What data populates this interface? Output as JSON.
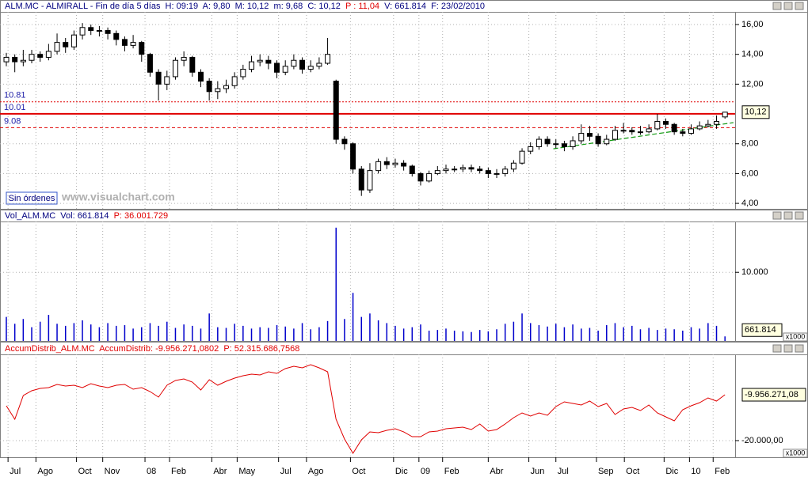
{
  "ui": {
    "button": "Sin órdenes",
    "watermark": "www.visualchart.com"
  },
  "chart_data": [
    {
      "type": "candlestick",
      "title_parts": [
        {
          "text": "ALM.MC - ALMIRALL - Fin de día 5 días  H: 09:19  A: 9,80  M: 10,12  m: 9,68  C: 10,12  ",
          "color": "#000080"
        },
        {
          "text": "P : 11,04",
          "color": "#e00000"
        },
        {
          "text": "  V: 661.814  F: 23/02/2010",
          "color": "#000080"
        }
      ],
      "open": [
        13.5,
        13.8,
        13.5,
        13.6,
        14.0,
        13.8,
        14.2,
        14.8,
        14.5,
        15.3,
        15.8,
        15.6,
        15.6,
        15.4,
        15.0,
        14.6,
        14.8,
        14.0,
        12.8,
        12.0,
        12.5,
        13.6,
        13.8,
        12.8,
        12.2,
        11.5,
        11.7,
        11.9,
        12.5,
        13.0,
        13.5,
        13.6,
        13.4,
        12.8,
        13.2,
        13.6,
        13.0,
        13.2,
        13.4,
        12.2,
        8.3,
        8.0,
        6.3,
        4.9,
        6.2,
        6.8,
        6.6,
        6.7,
        6.5,
        6.0,
        5.5,
        6.0,
        6.2,
        6.3,
        6.3,
        6.4,
        6.3,
        6.2,
        6.0,
        6.0,
        6.3,
        6.7,
        7.5,
        7.8,
        8.3,
        8.0,
        8.0,
        7.8,
        8.2,
        8.7,
        8.5,
        8.0,
        8.3,
        8.9,
        8.9,
        8.8,
        8.8,
        9.0,
        9.5,
        9.3,
        8.8,
        8.7,
        9.0,
        9.2,
        9.3,
        9.8
      ],
      "high": [
        14.1,
        14.0,
        14.3,
        14.3,
        14.2,
        14.7,
        15.4,
        15.1,
        15.6,
        16.1,
        16.0,
        15.9,
        15.8,
        15.6,
        15.2,
        15.3,
        14.9,
        14.1,
        13.0,
        12.9,
        13.8,
        14.2,
        13.9,
        13.0,
        12.4,
        12.2,
        12.3,
        12.8,
        13.3,
        13.9,
        14.0,
        13.9,
        13.6,
        13.6,
        14.0,
        13.8,
        13.6,
        13.8,
        15.1,
        12.3,
        8.5,
        8.1,
        6.5,
        6.7,
        7.0,
        7.1,
        7.0,
        6.9,
        6.6,
        6.1,
        6.2,
        6.5,
        6.6,
        6.5,
        6.6,
        6.6,
        6.5,
        6.4,
        6.3,
        6.5,
        6.9,
        7.7,
        8.1,
        8.5,
        8.5,
        8.3,
        8.2,
        8.5,
        9.3,
        9.2,
        8.7,
        8.6,
        9.2,
        9.4,
        9.1,
        9.2,
        9.3,
        10.0,
        9.7,
        9.4,
        9.0,
        9.3,
        9.5,
        9.6,
        9.9,
        10.12
      ],
      "low": [
        13.2,
        12.8,
        13.2,
        13.4,
        13.5,
        13.6,
        14.0,
        14.1,
        14.3,
        15.0,
        15.3,
        15.2,
        15.0,
        14.6,
        14.2,
        14.4,
        13.5,
        12.5,
        10.9,
        11.6,
        12.3,
        13.2,
        12.5,
        11.8,
        10.9,
        11.0,
        11.4,
        11.7,
        12.3,
        12.8,
        13.2,
        13.0,
        12.4,
        12.6,
        13.0,
        12.7,
        12.8,
        13.0,
        13.3,
        8.0,
        7.6,
        6.0,
        4.5,
        4.7,
        6.0,
        6.3,
        6.4,
        6.2,
        5.8,
        5.2,
        5.4,
        5.9,
        6.0,
        6.1,
        6.1,
        6.1,
        6.0,
        5.7,
        5.7,
        5.8,
        6.1,
        6.6,
        7.3,
        7.6,
        7.8,
        7.7,
        7.5,
        7.6,
        8.0,
        8.2,
        7.8,
        7.9,
        8.2,
        8.7,
        8.6,
        8.6,
        8.7,
        8.9,
        9.0,
        8.6,
        8.5,
        8.6,
        8.9,
        9.1,
        9.0,
        9.68
      ],
      "close": [
        13.8,
        13.5,
        13.6,
        14.0,
        13.8,
        14.2,
        14.8,
        14.5,
        15.3,
        15.8,
        15.6,
        15.6,
        15.4,
        15.0,
        14.6,
        14.8,
        14.0,
        12.8,
        12.0,
        12.5,
        13.6,
        13.8,
        12.8,
        12.2,
        11.5,
        11.7,
        11.9,
        12.5,
        13.0,
        13.5,
        13.6,
        13.4,
        12.8,
        13.2,
        13.6,
        13.0,
        13.2,
        13.4,
        14.0,
        8.3,
        8.0,
        6.3,
        4.9,
        6.2,
        6.8,
        6.6,
        6.7,
        6.5,
        6.0,
        5.5,
        6.0,
        6.2,
        6.3,
        6.3,
        6.4,
        6.3,
        6.2,
        6.0,
        6.0,
        6.3,
        6.7,
        7.5,
        7.8,
        8.3,
        8.0,
        8.0,
        7.8,
        8.2,
        8.7,
        8.5,
        8.0,
        8.3,
        8.9,
        8.9,
        8.8,
        8.8,
        9.0,
        9.5,
        9.3,
        8.8,
        8.7,
        9.0,
        9.2,
        9.3,
        9.5,
        10.12
      ],
      "current_label": "10,12",
      "ylim": [
        3.58,
        16.85
      ],
      "yticks": [
        {
          "value": 16,
          "label": "16,00"
        },
        {
          "value": 14,
          "label": "14,00"
        },
        {
          "value": 12,
          "label": "12,00"
        },
        {
          "value": 8,
          "label": "8,00"
        },
        {
          "value": 6,
          "label": "6,00"
        },
        {
          "value": 4,
          "label": "4,00"
        }
      ],
      "hlines": [
        {
          "value": 10.81,
          "color": "#e00000",
          "dash": "2,2",
          "width": 1
        },
        {
          "value": 10.01,
          "color": "#e00000",
          "dash": "none",
          "width": 2
        },
        {
          "value": 9.08,
          "color": "#e00000",
          "dash": "4,3",
          "width": 1
        }
      ],
      "trendline": {
        "x": [
          64.7,
          86
        ],
        "values": [
          7.66,
          9.42
        ],
        "color": "#119911"
      },
      "grid": true
    },
    {
      "type": "bar",
      "title_parts": [
        {
          "text": "Vol_ALM.MC  Vol: 661.814  ",
          "color": "#000080"
        },
        {
          "text": "P: 36.001.729",
          "color": "#e00000"
        }
      ],
      "color": "#0000cc",
      "values": [
        3500,
        2500,
        3200,
        2000,
        2800,
        3800,
        2500,
        2200,
        2600,
        3000,
        2400,
        2000,
        2600,
        2200,
        2300,
        1800,
        2000,
        2600,
        2200,
        2800,
        1900,
        2400,
        2200,
        1800,
        4000,
        2000,
        1900,
        2500,
        2200,
        1800,
        2000,
        1900,
        2300,
        2100,
        1800,
        2600,
        1700,
        2000,
        2900,
        16500,
        3200,
        7000,
        3500,
        4000,
        3000,
        2600,
        2200,
        1800,
        2000,
        2400,
        1500,
        1600,
        1800,
        1500,
        1400,
        1300,
        1600,
        1400,
        1700,
        2500,
        2800,
        4000,
        2600,
        2300,
        2100,
        2500,
        2000,
        2400,
        1800,
        1900,
        1500,
        2300,
        2600,
        2000,
        2200,
        1700,
        1900,
        1600,
        1800,
        1700,
        1500,
        2000,
        1800,
        2600,
        2200,
        661.814
      ],
      "current_label": "661.814",
      "unit": "x1000",
      "ylim": [
        0,
        17400
      ],
      "yticks": [
        {
          "value": 10000,
          "label": "10.000"
        }
      ],
      "grid": true
    },
    {
      "type": "line",
      "title_parts": [
        {
          "text": "AccumDistrib_ALM.MC  AccumDistrib: -9.956.271,0802  P: 52.315.686,7568",
          "color": "#e00000"
        }
      ],
      "color": "#e00000",
      "values": [
        -12379,
        -15324,
        -10128,
        -9088,
        -8569,
        -8396,
        -7703,
        -8049,
        -7876,
        -8396,
        -7530,
        -8049,
        -8396,
        -7876,
        -7703,
        -8742,
        -8396,
        -9262,
        -10474,
        -7876,
        -6837,
        -6490,
        -7183,
        -8915,
        -6664,
        -7876,
        -7010,
        -6317,
        -5798,
        -5451,
        -5624,
        -4932,
        -5278,
        -4239,
        -3719,
        -4066,
        -3373,
        -4066,
        -4932,
        -15324,
        -19654,
        -22771,
        -19827,
        -18095,
        -18268,
        -17748,
        -17402,
        -18095,
        -19134,
        -19134,
        -18095,
        -17922,
        -17402,
        -17229,
        -17056,
        -17575,
        -16363,
        -17922,
        -17575,
        -16363,
        -14977,
        -13938,
        -14631,
        -13938,
        -14458,
        -12552,
        -11513,
        -11860,
        -12206,
        -11340,
        -12552,
        -11860,
        -14284,
        -13072,
        -12726,
        -13418,
        -12206,
        -13938,
        -14804,
        -15670,
        -13245,
        -12379,
        -11686,
        -10647,
        -11340,
        -9956.27108
      ],
      "current_label": "-9.956.271,08",
      "unit": "x1000",
      "ylim": [
        -23637,
        -1121
      ],
      "yticks": [
        {
          "value": -20000,
          "label": "-20.000,00"
        }
      ],
      "grid": true,
      "xlim": [
        -0.75,
        86.2
      ],
      "xticks": [
        {
          "value": 0.2,
          "label": "Jul"
        },
        {
          "value": 3.5,
          "label": "Ago"
        },
        {
          "value": 8.3,
          "label": "Oct"
        },
        {
          "value": 11.4,
          "label": "Nov"
        },
        {
          "value": 16.4,
          "label": "08"
        },
        {
          "value": 19.3,
          "label": "Feb"
        },
        {
          "value": 24.3,
          "label": "Abr"
        },
        {
          "value": 27.3,
          "label": "May"
        },
        {
          "value": 32.2,
          "label": "Jul"
        },
        {
          "value": 35.5,
          "label": "Ago"
        },
        {
          "value": 40.7,
          "label": "Oct"
        },
        {
          "value": 45.8,
          "label": "Dic"
        },
        {
          "value": 48.8,
          "label": "09"
        },
        {
          "value": 51.6,
          "label": "Feb"
        },
        {
          "value": 57,
          "label": "Abr"
        },
        {
          "value": 61.8,
          "label": "Jun"
        },
        {
          "value": 65,
          "label": "Jul"
        },
        {
          "value": 69.8,
          "label": "Sep"
        },
        {
          "value": 73.1,
          "label": "Oct"
        },
        {
          "value": 77.8,
          "label": "Dic"
        },
        {
          "value": 80.8,
          "label": "10"
        },
        {
          "value": 83.6,
          "label": "Feb"
        }
      ]
    }
  ]
}
